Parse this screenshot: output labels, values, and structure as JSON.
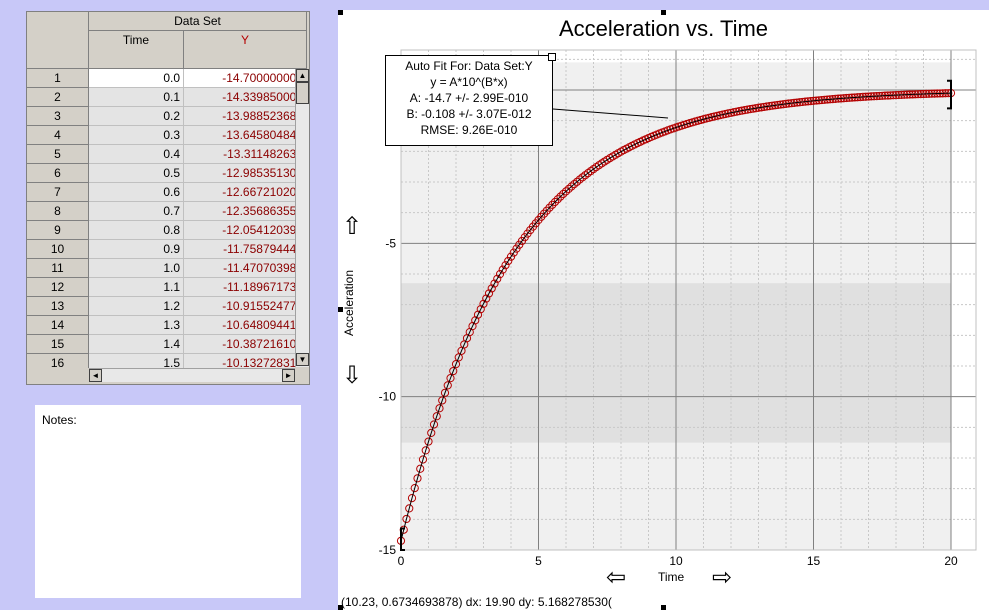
{
  "table": {
    "group_header": "Data Set",
    "columns": [
      "Time",
      "Y"
    ],
    "rows": [
      {
        "n": "1",
        "t": "0.0",
        "y": "-14.700000000"
      },
      {
        "n": "2",
        "t": "0.1",
        "y": "-14.339850000"
      },
      {
        "n": "3",
        "t": "0.2",
        "y": "-13.988523680"
      },
      {
        "n": "4",
        "t": "0.3",
        "y": "-13.645804840"
      },
      {
        "n": "5",
        "t": "0.4",
        "y": "-13.311482630"
      },
      {
        "n": "6",
        "t": "0.5",
        "y": "-12.985351300"
      },
      {
        "n": "7",
        "t": "0.6",
        "y": "-12.667210200"
      },
      {
        "n": "8",
        "t": "0.7",
        "y": "-12.356863550"
      },
      {
        "n": "9",
        "t": "0.8",
        "y": "-12.054120390"
      },
      {
        "n": "10",
        "t": "0.9",
        "y": "-11.758794440"
      },
      {
        "n": "11",
        "t": "1.0",
        "y": "-11.470703980"
      },
      {
        "n": "12",
        "t": "1.1",
        "y": "-11.189671730"
      },
      {
        "n": "13",
        "t": "1.2",
        "y": "-10.915524770"
      },
      {
        "n": "14",
        "t": "1.3",
        "y": "-10.648094410"
      },
      {
        "n": "15",
        "t": "1.4",
        "y": "-10.387216100"
      },
      {
        "n": "16",
        "t": "1.5",
        "y": "-10.132728310"
      }
    ]
  },
  "notes": {
    "label": "Notes:"
  },
  "fit": {
    "line1": "Auto Fit For:  Data Set:Y",
    "line2": "y = A*10^(B*x)",
    "line3": "A: -14.7 +/- 2.99E-010",
    "line4": "B: -0.108 +/- 3.07E-012",
    "line5": "RMSE: 9.26E-010"
  },
  "status_text": "(10.23, 0.6734693878) dx: 19.90 dy: 5.168278530(",
  "colors": {
    "data": "#b40000",
    "fit_line": "#000000",
    "shade_light": "#f0f0f0",
    "shade_dark": "#e0e0e0"
  },
  "icons": [
    "arrow-up-icon",
    "arrow-down-icon",
    "arrow-left-icon",
    "arrow-right-icon"
  ],
  "chart_data": {
    "type": "scatter",
    "title": "Acceleration vs. Time",
    "xlabel": "Time",
    "ylabel": "Acceleration",
    "xlim": [
      0,
      21
    ],
    "ylim": [
      -15,
      1.5
    ],
    "xticks": [
      0,
      5,
      10,
      15,
      20
    ],
    "yticks": [
      -15,
      -10,
      -5,
      0
    ],
    "grid": true,
    "series": [
      {
        "name": "Y",
        "model": "y = A*10^(B*x)",
        "A": -14.7,
        "B": -0.108,
        "x_start": 0.0,
        "x_end": 20.0,
        "x_step": 0.1
      }
    ]
  }
}
